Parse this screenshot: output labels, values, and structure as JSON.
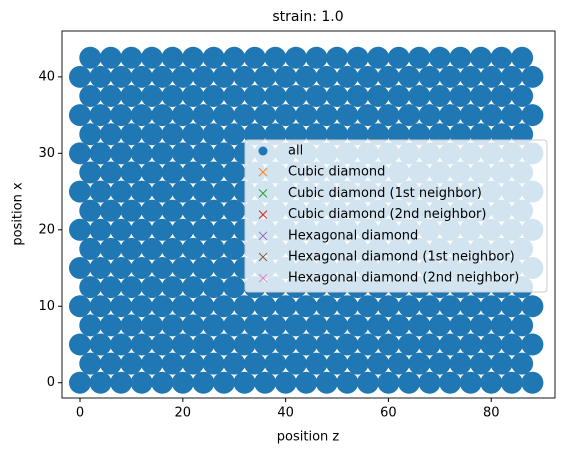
{
  "chart_data": {
    "type": "scatter",
    "title": "strain: 1.0",
    "x_label": "position z",
    "y_label": "position x",
    "xlim": [
      -3.5,
      92.4
    ],
    "ylim": [
      -2,
      46
    ],
    "xticks": [
      0,
      20,
      40,
      60,
      80
    ],
    "yticks": [
      0,
      10,
      20,
      30,
      40
    ],
    "grid": false,
    "legend_position": "right",
    "series": [
      {
        "name": "all",
        "color": "#1f77b4",
        "marker": "o",
        "x": [
          0,
          4,
          8,
          12,
          16,
          20,
          24,
          28,
          32,
          36,
          40,
          44,
          48,
          52,
          56,
          60,
          64,
          68,
          72,
          76,
          80,
          84,
          88,
          2,
          6,
          10,
          14,
          18,
          22,
          26,
          30,
          34,
          38,
          42,
          46,
          50,
          54,
          58,
          62,
          66,
          70,
          74,
          78,
          82,
          86,
          0,
          4,
          8,
          12,
          16,
          20,
          24,
          28,
          32,
          36,
          40,
          44,
          48,
          52,
          56,
          60,
          64,
          68,
          72,
          76,
          80,
          84,
          88,
          2,
          6,
          10,
          14,
          18,
          22,
          26,
          30,
          34,
          38,
          42,
          46,
          50,
          54,
          58,
          62,
          66,
          70,
          74,
          78,
          82,
          86,
          0,
          4,
          8,
          12,
          16,
          20,
          24,
          28,
          32,
          36,
          40,
          44,
          48,
          52,
          56,
          60,
          64,
          68,
          72,
          76,
          80,
          84,
          88,
          2,
          6,
          10,
          14,
          18,
          22,
          26,
          30,
          34,
          38,
          42,
          46,
          50,
          54,
          58,
          62,
          66,
          70,
          74,
          78,
          82,
          86,
          0,
          4,
          8,
          12,
          16,
          20,
          24,
          28,
          32,
          36,
          40,
          44,
          48,
          52,
          56,
          60,
          64,
          68,
          72,
          76,
          80,
          84,
          88,
          2,
          6,
          10,
          14,
          18,
          22,
          26,
          30,
          34,
          38,
          42,
          46,
          50,
          54,
          58,
          62,
          66,
          70,
          74,
          78,
          82,
          86,
          0,
          4,
          8,
          12,
          16,
          20,
          24,
          28,
          32,
          36,
          40,
          44,
          48,
          52,
          56,
          60,
          64,
          68,
          72,
          76,
          80,
          84,
          88,
          2,
          6,
          10,
          14,
          18,
          22,
          26,
          30,
          34,
          38,
          42,
          46,
          50,
          54,
          58,
          62,
          66,
          70,
          74,
          78,
          82,
          86,
          0,
          4,
          8,
          12,
          16,
          20,
          24,
          28,
          32,
          36,
          40,
          44,
          48,
          52,
          56,
          60,
          64,
          68,
          72,
          76,
          80,
          84,
          88,
          2,
          6,
          10,
          14,
          18,
          22,
          26,
          30,
          34,
          38,
          42,
          46,
          50,
          54,
          58,
          62,
          66,
          70,
          74,
          78,
          82,
          86,
          0,
          4,
          8,
          12,
          16,
          20,
          24,
          28,
          32,
          36,
          40,
          44,
          48,
          52,
          56,
          60,
          64,
          68,
          72,
          76,
          80,
          84,
          88,
          2,
          6,
          10,
          14,
          18,
          22,
          26,
          30,
          34,
          38,
          42,
          46,
          50,
          54,
          58,
          62,
          66,
          70,
          74,
          78,
          82,
          86,
          0,
          4,
          8,
          12,
          16,
          20,
          24,
          28,
          32,
          36,
          40,
          44,
          48,
          52,
          56,
          60,
          64,
          68,
          72,
          76,
          80,
          84,
          88,
          2,
          6,
          10,
          14,
          18,
          22,
          26,
          30,
          34,
          38,
          42,
          46,
          50,
          54,
          58,
          62,
          66,
          70,
          74,
          78,
          82,
          86,
          0,
          4,
          8,
          12,
          16,
          20,
          24,
          28,
          32,
          36,
          40,
          44,
          48,
          52,
          56,
          60,
          64,
          68,
          72,
          76,
          80,
          84,
          88,
          2,
          6,
          10,
          14,
          18,
          22,
          26,
          30,
          34,
          38,
          42,
          46,
          50,
          54,
          58,
          62,
          66,
          70,
          74,
          78,
          82,
          86
        ],
        "y": [
          0,
          0,
          0,
          0,
          0,
          0,
          0,
          0,
          0,
          0,
          0,
          0,
          0,
          0,
          0,
          0,
          0,
          0,
          0,
          0,
          0,
          0,
          0,
          2.5,
          2.5,
          2.5,
          2.5,
          2.5,
          2.5,
          2.5,
          2.5,
          2.5,
          2.5,
          2.5,
          2.5,
          2.5,
          2.5,
          2.5,
          2.5,
          2.5,
          2.5,
          2.5,
          2.5,
          2.5,
          2.5,
          5,
          5,
          5,
          5,
          5,
          5,
          5,
          5,
          5,
          5,
          5,
          5,
          5,
          5,
          5,
          5,
          5,
          5,
          5,
          5,
          5,
          5,
          5,
          7.5,
          7.5,
          7.5,
          7.5,
          7.5,
          7.5,
          7.5,
          7.5,
          7.5,
          7.5,
          7.5,
          7.5,
          7.5,
          7.5,
          7.5,
          7.5,
          7.5,
          7.5,
          7.5,
          7.5,
          7.5,
          7.5,
          10,
          10,
          10,
          10,
          10,
          10,
          10,
          10,
          10,
          10,
          10,
          10,
          10,
          10,
          10,
          10,
          10,
          10,
          10,
          10,
          10,
          10,
          10,
          12.5,
          12.5,
          12.5,
          12.5,
          12.5,
          12.5,
          12.5,
          12.5,
          12.5,
          12.5,
          12.5,
          12.5,
          12.5,
          12.5,
          12.5,
          12.5,
          12.5,
          12.5,
          12.5,
          12.5,
          12.5,
          12.5,
          15,
          15,
          15,
          15,
          15,
          15,
          15,
          15,
          15,
          15,
          15,
          15,
          15,
          15,
          15,
          15,
          15,
          15,
          15,
          15,
          15,
          15,
          15,
          17.5,
          17.5,
          17.5,
          17.5,
          17.5,
          17.5,
          17.5,
          17.5,
          17.5,
          17.5,
          17.5,
          17.5,
          17.5,
          17.5,
          17.5,
          17.5,
          17.5,
          17.5,
          17.5,
          17.5,
          17.5,
          17.5,
          20,
          20,
          20,
          20,
          20,
          20,
          20,
          20,
          20,
          20,
          20,
          20,
          20,
          20,
          20,
          20,
          20,
          20,
          20,
          20,
          20,
          20,
          20,
          22.5,
          22.5,
          22.5,
          22.5,
          22.5,
          22.5,
          22.5,
          22.5,
          22.5,
          22.5,
          22.5,
          22.5,
          22.5,
          22.5,
          22.5,
          22.5,
          22.5,
          22.5,
          22.5,
          22.5,
          22.5,
          22.5,
          25,
          25,
          25,
          25,
          25,
          25,
          25,
          25,
          25,
          25,
          25,
          25,
          25,
          25,
          25,
          25,
          25,
          25,
          25,
          25,
          25,
          25,
          25,
          27.5,
          27.5,
          27.5,
          27.5,
          27.5,
          27.5,
          27.5,
          27.5,
          27.5,
          27.5,
          27.5,
          27.5,
          27.5,
          27.5,
          27.5,
          27.5,
          27.5,
          27.5,
          27.5,
          27.5,
          27.5,
          27.5,
          30,
          30,
          30,
          30,
          30,
          30,
          30,
          30,
          30,
          30,
          30,
          30,
          30,
          30,
          30,
          30,
          30,
          30,
          30,
          30,
          30,
          30,
          30,
          32.5,
          32.5,
          32.5,
          32.5,
          32.5,
          32.5,
          32.5,
          32.5,
          32.5,
          32.5,
          32.5,
          32.5,
          32.5,
          32.5,
          32.5,
          32.5,
          32.5,
          32.5,
          32.5,
          32.5,
          32.5,
          32.5,
          35,
          35,
          35,
          35,
          35,
          35,
          35,
          35,
          35,
          35,
          35,
          35,
          35,
          35,
          35,
          35,
          35,
          35,
          35,
          35,
          35,
          35,
          35,
          37.5,
          37.5,
          37.5,
          37.5,
          37.5,
          37.5,
          37.5,
          37.5,
          37.5,
          37.5,
          37.5,
          37.5,
          37.5,
          37.5,
          37.5,
          37.5,
          37.5,
          37.5,
          37.5,
          37.5,
          37.5,
          37.5,
          40,
          40,
          40,
          40,
          40,
          40,
          40,
          40,
          40,
          40,
          40,
          40,
          40,
          40,
          40,
          40,
          40,
          40,
          40,
          40,
          40,
          40,
          40,
          42.5,
          42.5,
          42.5,
          42.5,
          42.5,
          42.5,
          42.5,
          42.5,
          42.5,
          42.5,
          42.5,
          42.5,
          42.5,
          42.5,
          42.5,
          42.5,
          42.5,
          42.5,
          42.5,
          42.5,
          42.5,
          42.5
        ]
      },
      {
        "name": "Cubic diamond",
        "color": "#ff7f0e",
        "marker": "x",
        "x": [],
        "y": []
      },
      {
        "name": "Cubic diamond (1st neighbor)",
        "color": "#2ca02c",
        "marker": "x",
        "x": [],
        "y": []
      },
      {
        "name": "Cubic diamond (2nd neighbor)",
        "color": "#d62728",
        "marker": "x",
        "x": [],
        "y": []
      },
      {
        "name": "Hexagonal diamond",
        "color": "#9467bd",
        "marker": "x",
        "x": [],
        "y": []
      },
      {
        "name": "Hexagonal diamond (1st neighbor)",
        "color": "#8c564b",
        "marker": "x",
        "x": [],
        "y": []
      },
      {
        "name": "Hexagonal diamond (2nd neighbor)",
        "color": "#e377c2",
        "marker": "x",
        "x": [],
        "y": []
      }
    ]
  }
}
